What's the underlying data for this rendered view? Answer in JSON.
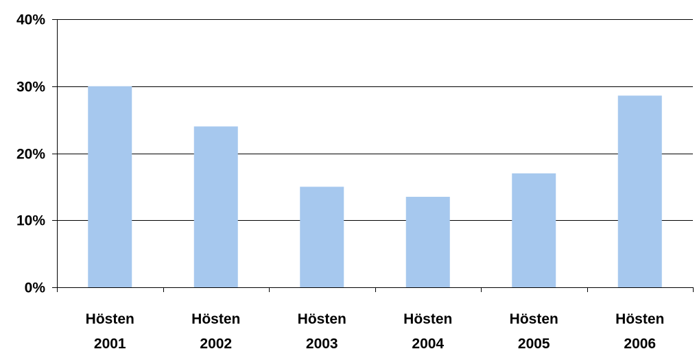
{
  "chart_data": {
    "type": "bar",
    "title": "",
    "xlabel": "",
    "ylabel": "",
    "categories": [
      [
        "Hösten",
        "2001"
      ],
      [
        "Hösten",
        "2002"
      ],
      [
        "Hösten",
        "2003"
      ],
      [
        "Hösten",
        "2004"
      ],
      [
        "Hösten",
        "2005"
      ],
      [
        "Hösten",
        "2006"
      ]
    ],
    "values": [
      30,
      24,
      15,
      13.5,
      17,
      28.6
    ],
    "ylim": [
      0,
      40
    ],
    "yticks": [
      0,
      10,
      20,
      30,
      40
    ],
    "ytick_labels": [
      "0%",
      "10%",
      "20%",
      "30%",
      "40%"
    ],
    "grid": true,
    "legend": "none",
    "colors": {
      "bar": "#A6C8EE",
      "grid": "#000000",
      "axis": "#000000"
    }
  }
}
